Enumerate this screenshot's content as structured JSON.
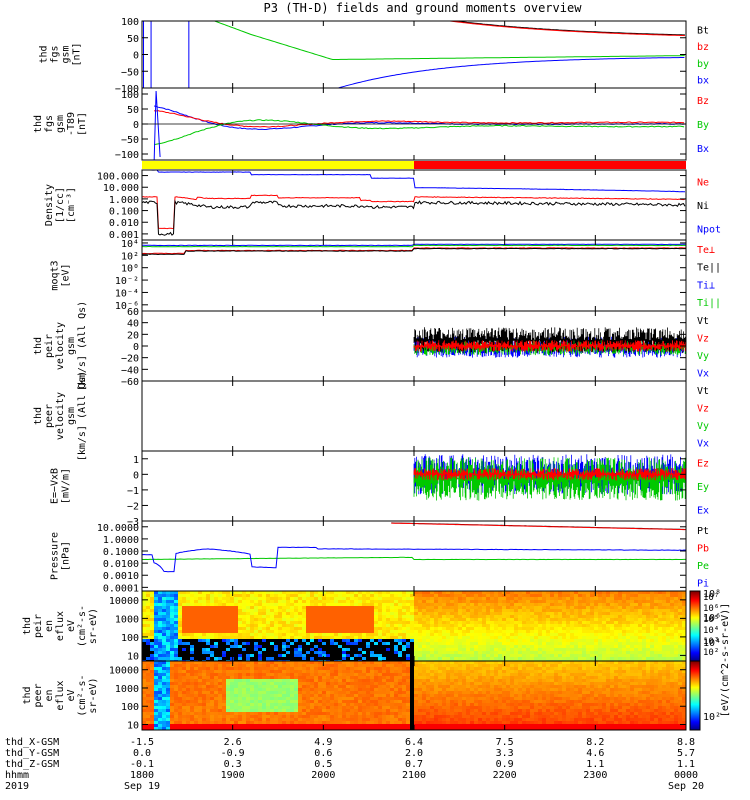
{
  "title": "P3 (TH-D) fields and ground moments overview",
  "colors": {
    "black": "#000000",
    "red": "#ff0000",
    "green": "#00c800",
    "blue": "#0000ff",
    "yellow": "#ffff00"
  },
  "chart_data": [
    {
      "type": "line",
      "ylabel_lines": [
        "thd",
        "fgs",
        "gsm",
        "[nT]"
      ],
      "ylim": [
        -100,
        100
      ],
      "yticks": [
        "100",
        "50",
        "0",
        "−50",
        "−100"
      ],
      "yticks_values": [
        100,
        50,
        0,
        -50,
        -100
      ],
      "legend": [
        {
          "name": "Bt",
          "color": "#000000"
        },
        {
          "name": "bz",
          "color": "#ff0000"
        },
        {
          "name": "by",
          "color": "#00c800"
        },
        {
          "name": "bx",
          "color": "#0000ff"
        }
      ]
    },
    {
      "type": "line",
      "ylabel_lines": [
        "thd",
        "fgs",
        "gsm",
        "-T89",
        "[nT]"
      ],
      "ylim": [
        -120,
        120
      ],
      "yticks": [
        "100",
        "50",
        "0",
        "−50",
        "−100"
      ],
      "yticks_values": [
        100,
        50,
        0,
        -50,
        -100
      ],
      "legend": [
        {
          "name": "Bz",
          "color": "#ff0000"
        },
        {
          "name": "By",
          "color": "#00c800"
        },
        {
          "name": "Bx",
          "color": "#0000ff"
        }
      ]
    },
    {
      "type": "bar",
      "description_values": {
        "yellow_until_hhmm": 2100,
        "red_after_hhmm": 2100
      }
    },
    {
      "type": "line",
      "yscale": "log",
      "ylabel_lines": [
        "Density",
        "[1/cc]",
        "[cm⁻³]"
      ],
      "ylim": [
        0.0003,
        300
      ],
      "yticks": [
        "100.000",
        "10.000",
        "1.000",
        "0.100",
        "0.010",
        "0.001"
      ],
      "yticks_values": [
        100,
        10,
        1,
        0.1,
        0.01,
        0.001
      ],
      "legend": [
        {
          "name": "Ne",
          "color": "#ff0000"
        },
        {
          "name": "Ni",
          "color": "#000000"
        },
        {
          "name": "Npot",
          "color": "#0000ff"
        }
      ]
    },
    {
      "type": "line",
      "yscale": "log",
      "ylabel_lines": [
        "moqt3",
        "[eV]"
      ],
      "ylim": [
        1e-07,
        30000
      ],
      "yticks": [
        "10⁴",
        "10²",
        "10⁰",
        "10⁻²",
        "10⁻⁴",
        "10⁻⁶"
      ],
      "yticks_values": [
        10000,
        100,
        1,
        0.01,
        0.0001,
        1e-06
      ],
      "legend": [
        {
          "name": "Te⊥",
          "color": "#ff0000"
        },
        {
          "name": "Te||",
          "color": "#000000"
        },
        {
          "name": "Ti⊥",
          "color": "#0000ff"
        },
        {
          "name": "Ti||",
          "color": "#00c800"
        }
      ]
    },
    {
      "type": "line",
      "ylabel_lines": [
        "thd",
        "peir",
        "velocity",
        "gsm",
        "[km/s] (All Qs)"
      ],
      "ylim": [
        -60,
        60
      ],
      "yticks": [
        "60",
        "40",
        "20",
        "0",
        "−20",
        "−40",
        "−60"
      ],
      "yticks_values": [
        60,
        40,
        20,
        0,
        -20,
        -40,
        -60
      ],
      "legend": [
        {
          "name": "Vt",
          "color": "#000000"
        },
        {
          "name": "Vz",
          "color": "#ff0000"
        },
        {
          "name": "Vy",
          "color": "#00c800"
        },
        {
          "name": "Vx",
          "color": "#0000ff"
        }
      ]
    },
    {
      "type": "line",
      "ylabel_lines": [
        "thd",
        "peer",
        "velocity",
        "gsm",
        "[km/s] (All Qs)"
      ],
      "legend": [
        {
          "name": "Vt",
          "color": "#000000"
        },
        {
          "name": "Vz",
          "color": "#ff0000"
        },
        {
          "name": "Vy",
          "color": "#00c800"
        },
        {
          "name": "Vx",
          "color": "#0000ff"
        }
      ]
    },
    {
      "type": "line",
      "ylabel_lines": [
        "E=−VxB",
        "[mV/m]"
      ],
      "ylim": [
        -3,
        1.5
      ],
      "yticks": [
        "1",
        "0",
        "−1",
        "−2",
        "−3"
      ],
      "yticks_values": [
        1,
        0,
        -1,
        -2,
        -3
      ],
      "legend": [
        {
          "name": "Ez",
          "color": "#ff0000"
        },
        {
          "name": "Ey",
          "color": "#00c800"
        },
        {
          "name": "Ex",
          "color": "#0000ff"
        }
      ]
    },
    {
      "type": "line",
      "yscale": "log",
      "ylabel_lines": [
        "Pressure",
        "[nPa]"
      ],
      "ylim": [
        5e-05,
        30
      ],
      "yticks": [
        "10.0000",
        "1.0000",
        "0.1000",
        "0.0100",
        "0.0010",
        "0.0001"
      ],
      "yticks_values": [
        10,
        1,
        0.1,
        0.01,
        0.001,
        0.0001
      ],
      "legend": [
        {
          "name": "Pt",
          "color": "#000000"
        },
        {
          "name": "Pb",
          "color": "#ff0000"
        },
        {
          "name": "Pe",
          "color": "#00c800"
        },
        {
          "name": "Pi",
          "color": "#0000ff"
        }
      ]
    },
    {
      "type": "heatmap",
      "yscale": "log",
      "ylabel_lines": [
        "thd",
        "peir",
        "en",
        "eflux",
        "eV",
        "(cm²-s-",
        "sr-eV)"
      ],
      "yticks": [
        "10000",
        "1000",
        "100",
        "10"
      ],
      "yticks_values": [
        10000,
        1000,
        100,
        10
      ],
      "colorbar_label": "[eV/(cm^2-s-sr-eV)]"
    },
    {
      "type": "heatmap",
      "yscale": "log",
      "ylabel_lines": [
        "thd",
        "peer",
        "en",
        "eflux",
        "eV",
        "(cm²-s-",
        "sr-eV)"
      ],
      "yticks": [
        "10000",
        "1000",
        "100",
        "10"
      ],
      "yticks_values": [
        10000,
        1000,
        100,
        10
      ],
      "colorbar_ticks": [
        "10⁸",
        "10⁶",
        "10⁴",
        "10²"
      ],
      "colorbar_label": "[eV/(cm^2-s-sr-eV)]"
    }
  ],
  "x_axis": {
    "row_labels": [
      "thd_X-GSM",
      "thd_Y-GSM",
      "thd_Z-GSM",
      "hhmm",
      "2019"
    ],
    "hhmm": [
      1800,
      1900,
      2000,
      2100,
      2200,
      2300,
      0
    ],
    "columns": [
      {
        "x": "-1.5",
        "y": "0.0",
        "z": "-0.1",
        "hhmm": "1800",
        "date": "Sep 19"
      },
      {
        "x": "2.6",
        "y": "-0.9",
        "z": "0.3",
        "hhmm": "1900",
        "date": ""
      },
      {
        "x": "4.9",
        "y": "0.6",
        "z": "0.5",
        "hhmm": "2000",
        "date": ""
      },
      {
        "x": "6.4",
        "y": "2.0",
        "z": "0.7",
        "hhmm": "2100",
        "date": ""
      },
      {
        "x": "7.5",
        "y": "3.3",
        "z": "0.9",
        "hhmm": "2200",
        "date": ""
      },
      {
        "x": "8.2",
        "y": "4.6",
        "z": "1.1",
        "hhmm": "2300",
        "date": ""
      },
      {
        "x": "8.8",
        "y": "5.7",
        "z": "1.1",
        "hhmm": "0000",
        "date": "Sep 20"
      }
    ]
  }
}
